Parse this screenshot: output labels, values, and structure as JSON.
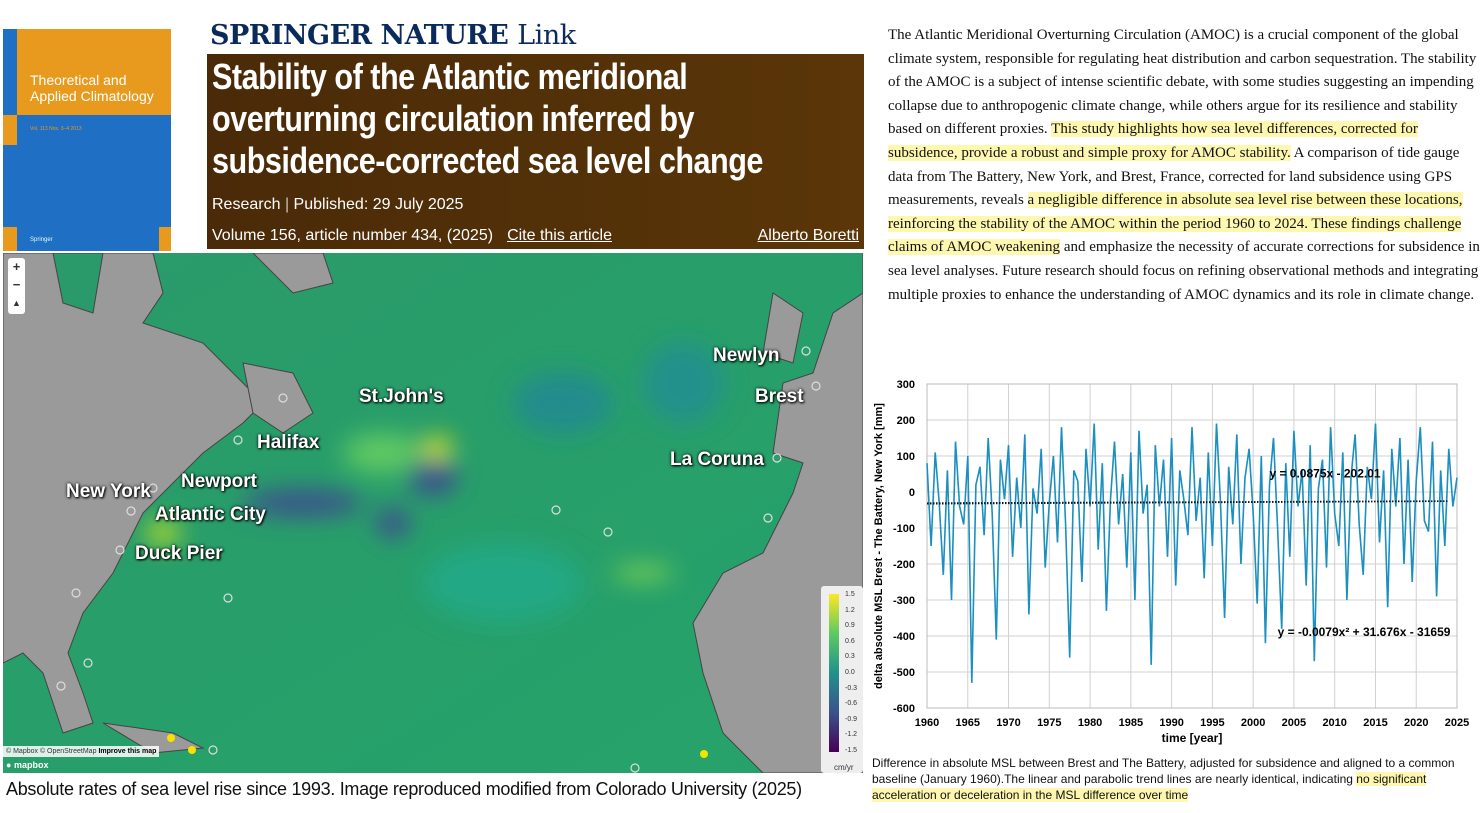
{
  "cover": {
    "title": "Theoretical and Applied Climatology",
    "volume": "Vol. 113 Nos. 3–4 2013",
    "publisher": "Springer"
  },
  "header": {
    "brand": "SPRINGER NATURE",
    "brand_suffix": "Link"
  },
  "article": {
    "title": "Stability of the Atlantic meridional overturning circulation inferred by subsidence-corrected sea level change",
    "type": "Research",
    "published": "Published: 29 July 2025",
    "volume": "Volume 156, article number 434, (2025)",
    "cite_label": "Cite this article",
    "author": "Alberto Boretti"
  },
  "map": {
    "labels": [
      "Newlyn",
      "Brest",
      "St.John's",
      "Halifax",
      "La Coruna",
      "New York",
      "Newport",
      "Atlantic City",
      "Duck Pier"
    ],
    "zoom_in": "+",
    "zoom_out": "−",
    "attribution": "© Mapbox © OpenStreetMap",
    "improve": "Improve this map",
    "mapbox": "mapbox",
    "legend": {
      "ticks": [
        "1.5",
        "1.2",
        "0.9",
        "0.6",
        "0.3",
        "0.0",
        "-0.3",
        "-0.6",
        "-0.9",
        "-1.2",
        "-1.5"
      ],
      "unit": "cm/yr"
    },
    "caption": "Absolute rates of sea level rise since 1993. Image reproduced modified from Colorado University (2025)"
  },
  "abstract": [
    {
      "t": "The Atlantic Meridional Overturning Circulation (AMOC) is a crucial component of the global climate system, responsible for regulating heat distribution and carbon sequestration. The stability of the AMOC is a subject of intense scientific debate, with some studies suggesting an impending collapse due to anthropogenic climate change, while others argue for its resilience and stability based on different proxies. ",
      "h": false
    },
    {
      "t": "This study highlights how sea level differences, corrected for subsidence, provide a robust and simple proxy for AMOC stability.",
      "h": true
    },
    {
      "t": " A comparison of tide gauge data from The Battery, New York, and Brest, France, corrected for land subsidence using GPS measurements, reveals ",
      "h": false
    },
    {
      "t": "a negligible difference in absolute sea level rise between these locations, reinforcing the stability of the AMOC within the period 1960 to 2024. These findings challenge claims of AMOC weakening",
      "h": true
    },
    {
      "t": " and emphasize the necessity of accurate corrections for subsidence in sea level analyses. Future research should focus on refining observational methods and integrating multiple proxies to enhance the understanding of AMOC dynamics and its role in climate change.",
      "h": false
    }
  ],
  "chart_data": {
    "type": "line",
    "xlabel": "time [year]",
    "ylabel": "delta absolute  MSL Brest - The Battery, New York [mm]",
    "xlim": [
      1960,
      2025
    ],
    "ylim": [
      -600,
      300
    ],
    "xticks": [
      "1960",
      "1965",
      "1970",
      "1975",
      "1980",
      "1985",
      "1990",
      "1995",
      "2000",
      "2005",
      "2010",
      "2015",
      "2020",
      "2025"
    ],
    "yticks": [
      "300",
      "200",
      "100",
      "0",
      "-100",
      "-200",
      "-300",
      "-400",
      "-500",
      "-600"
    ],
    "grid": true,
    "series_color": "#1a8fc0",
    "x_start": 1960,
    "x_step": 0.5,
    "values": [
      80,
      -150,
      110,
      -30,
      -230,
      60,
      -300,
      140,
      -40,
      -90,
      100,
      -530,
      20,
      70,
      -120,
      150,
      -60,
      -410,
      90,
      -20,
      130,
      -180,
      40,
      -100,
      160,
      -340,
      10,
      -60,
      120,
      -210,
      -30,
      100,
      -140,
      180,
      -90,
      -460,
      60,
      30,
      -250,
      120,
      -40,
      190,
      -160,
      80,
      -330,
      -20,
      140,
      -90,
      50,
      -210,
      110,
      -300,
      170,
      -60,
      20,
      -480,
      130,
      -40,
      90,
      -180,
      150,
      -260,
      60,
      -20,
      -120,
      180,
      -80,
      40,
      -240,
      110,
      -150,
      190,
      -30,
      -350,
      70,
      -90,
      160,
      -200,
      40,
      120,
      -60,
      -310,
      100,
      -420,
      20,
      150,
      -100,
      -380,
      80,
      -180,
      170,
      -40,
      60,
      -260,
      130,
      -470,
      10,
      90,
      -210,
      180,
      -60,
      -150,
      110,
      -300,
      40,
      160,
      -90,
      -230,
      70,
      -20,
      190,
      -140,
      60,
      -320,
      120,
      -40,
      150,
      -200,
      90,
      -250,
      30,
      180,
      -80,
      -110,
      140,
      -290,
      60,
      -150,
      120,
      -40,
      40
    ],
    "trend_lines": [
      {
        "label": "y = 0.0875x - 202.01",
        "style": "dotted",
        "y_start": -30.5,
        "y_end": -24.9
      },
      {
        "label": "y = -0.0079x² + 31.676x - 31659",
        "style": "dotted",
        "y_start": -33,
        "y_end": -26
      }
    ]
  },
  "chart_caption": {
    "text": "Difference in absolute MSL between Brest and The Battery, adjusted for subsidence and aligned to a common baseline (January 1960).The linear and parabolic trend lines are nearly identical, indicating ",
    "highlight": "no significant acceleration or deceleration in the MSL difference over time"
  }
}
